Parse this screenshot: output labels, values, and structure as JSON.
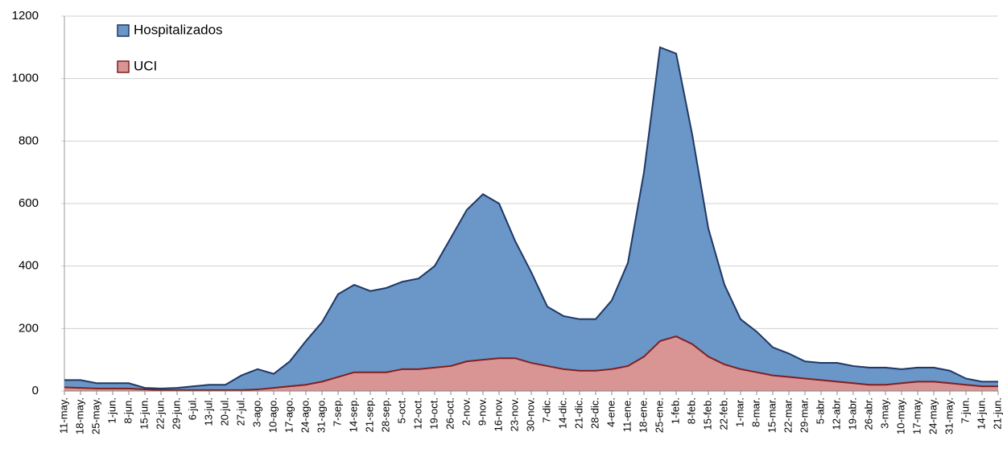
{
  "chart_data": {
    "type": "area",
    "categories": [
      "11-may.",
      "18-may.",
      "25-may.",
      "1-jun.",
      "8-jun.",
      "15-jun.",
      "22-jun.",
      "29-jun.",
      "6-jul.",
      "13-jul.",
      "20-jul.",
      "27-jul.",
      "3-ago.",
      "10-ago.",
      "17-ago.",
      "24-ago.",
      "31-ago.",
      "7-sep.",
      "14-sep.",
      "21-sep.",
      "28-sep.",
      "5-oct.",
      "12-oct.",
      "19-oct.",
      "26-oct.",
      "2-nov.",
      "9-nov.",
      "16-nov.",
      "23-nov.",
      "30-nov.",
      "7-dic.",
      "14-dic.",
      "21-dic.",
      "28-dic.",
      "4-ene.",
      "11-ene.",
      "18-ene.",
      "25-ene.",
      "1-feb.",
      "8-feb.",
      "15-feb.",
      "22-feb.",
      "1-mar.",
      "8-mar.",
      "15-mar.",
      "22-mar.",
      "29-mar.",
      "5-abr.",
      "12-abr.",
      "19-abr.",
      "26-abr.",
      "3-may.",
      "10-may.",
      "17-may.",
      "24-may.",
      "31-may.",
      "7-jun.",
      "14-jun.",
      "21-jun."
    ],
    "series": [
      {
        "name": "Hospitalizados",
        "color": "#6a96c8",
        "line_color": "#1f3864",
        "values": [
          35,
          35,
          25,
          25,
          25,
          10,
          8,
          10,
          15,
          20,
          20,
          50,
          70,
          55,
          95,
          160,
          220,
          310,
          340,
          320,
          330,
          350,
          360,
          400,
          490,
          580,
          630,
          600,
          480,
          380,
          270,
          240,
          230,
          230,
          290,
          410,
          700,
          1100,
          1080,
          820,
          520,
          340,
          230,
          190,
          140,
          120,
          95,
          90,
          90,
          80,
          75,
          75,
          70,
          75,
          75,
          65,
          40,
          30,
          30
        ]
      },
      {
        "name": "UCI",
        "color": "#d99594",
        "line_color": "#7f1f1f",
        "values": [
          12,
          10,
          8,
          8,
          8,
          5,
          3,
          3,
          3,
          3,
          3,
          3,
          5,
          10,
          15,
          20,
          30,
          45,
          60,
          60,
          60,
          70,
          70,
          75,
          80,
          95,
          100,
          105,
          105,
          90,
          80,
          70,
          65,
          65,
          70,
          80,
          110,
          160,
          175,
          150,
          110,
          85,
          70,
          60,
          50,
          45,
          40,
          35,
          30,
          25,
          20,
          20,
          25,
          30,
          30,
          25,
          20,
          15,
          15
        ]
      }
    ],
    "ylim": [
      0,
      1200
    ],
    "yticks": [
      0,
      200,
      400,
      600,
      800,
      1000,
      1200
    ],
    "grid": true,
    "legend": "top-left"
  }
}
